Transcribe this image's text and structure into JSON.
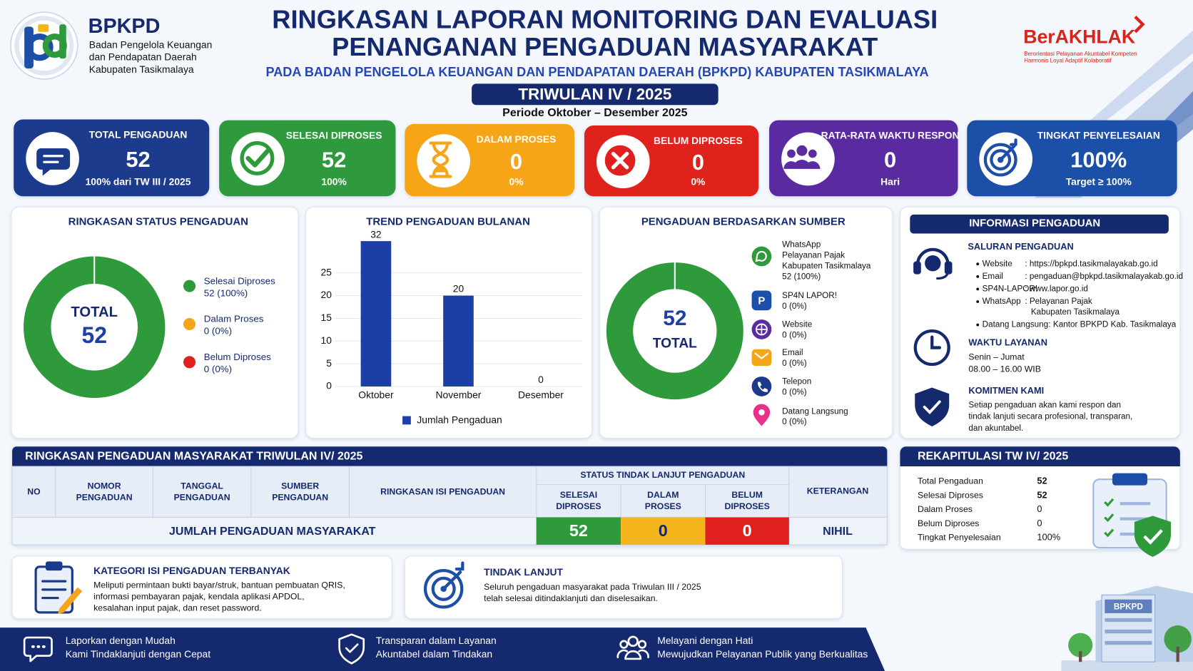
{
  "header": {
    "org_short": "BPKPD",
    "org_name": [
      "Badan Pengelola Keuangan",
      "dan Pendapatan Daerah",
      "Kabupaten Tasikmalaya"
    ],
    "title": [
      "RINGKASAN LAPORAN MONITORING DAN EVALUASI",
      "PENANGANAN PENGADUAN MASYARAKAT"
    ],
    "subtitle": "PADA BADAN PENGELOLA KEUANGAN DAN PENDAPATAN DAERAH (BPKPD) KABUPATEN TASIKMALAYA",
    "period_badge": "TRIWULAN IV / 2025",
    "period": "Periode Oktober – Desember 2025",
    "brand": "BerAKHLAK",
    "brand_tagline": [
      "Berorientasi Pelayanan Akuntabel Kompeten",
      "Harmonis Loyal Adaptif Kolaboratif"
    ]
  },
  "cards": [
    {
      "label": "TOTAL PENGADUAN",
      "value": "52",
      "note": "100% dari TW III / 2025",
      "color": "#1b3a8c"
    },
    {
      "label": "SELESAI DIPROSES",
      "value": "52",
      "note": "100%",
      "color": "#2f9a3c"
    },
    {
      "label": "DALAM PROSES",
      "value": "0",
      "note": "0%",
      "color": "#f5a519"
    },
    {
      "label": "BELUM DIPROSES",
      "value": "0",
      "note": "0%",
      "color": "#e0201f"
    },
    {
      "label": "RATA-RATA WAKTU RESPON",
      "value": "0",
      "note": "Hari",
      "color": "#5a2ca0"
    },
    {
      "label": "TINGKAT PENYELESAIAN",
      "value": "100%",
      "note": "Target ≥ 100%",
      "color": "#1d4fa8"
    }
  ],
  "status_chart": {
    "type": "donut",
    "title": "RINGKASAN STATUS PENGADUAN",
    "center_label": "TOTAL",
    "center_value": "52",
    "items": [
      {
        "name": "Selesai Diproses",
        "label": "52 (100%)",
        "value": 52,
        "color": "#2f9a3c"
      },
      {
        "name": "Dalam Proses",
        "label": "0 (0%)",
        "value": 0,
        "color": "#f5a519"
      },
      {
        "name": "Belum Diproses",
        "label": "0 (0%)",
        "value": 0,
        "color": "#e0201f"
      }
    ]
  },
  "trend_chart": {
    "type": "bar",
    "title": "TREND PENGADUAN BULANAN",
    "categories": [
      "Oktober",
      "November",
      "Desember"
    ],
    "values": [
      32,
      20,
      0
    ],
    "series_name": "Jumlah Pengaduan",
    "color": "#1b3fa6",
    "ylim": [
      0,
      34
    ],
    "yticks": [
      0,
      5,
      10,
      15,
      20,
      25
    ],
    "grid": true
  },
  "source_chart": {
    "type": "donut",
    "title": "PENGADUAN BERDASARKAN SUMBER",
    "center_value": "52",
    "center_label": "TOTAL",
    "items": [
      {
        "name": [
          "WhatsApp",
          "Pelayanan Pajak",
          "Kabupaten Tasikmalaya"
        ],
        "label": "52 (100%)",
        "value": 52,
        "color": "#2f9a3c"
      },
      {
        "name": [
          "SP4N LAPOR!"
        ],
        "label": "0 (0%)",
        "value": 0,
        "color": "#1d4fa8"
      },
      {
        "name": [
          "Website"
        ],
        "label": "0 (0%)",
        "value": 0,
        "color": "#5a2ca0"
      },
      {
        "name": [
          "Email"
        ],
        "label": "0 (0%)",
        "value": 0,
        "color": "#f5a519"
      },
      {
        "name": [
          "Telepon"
        ],
        "label": "0 (0%)",
        "value": 0,
        "color": "#1b3a8c"
      },
      {
        "name": [
          "Datang Langsung"
        ],
        "label": "0 (0%)",
        "value": 0,
        "color": "#e8318a"
      }
    ]
  },
  "info": {
    "title": "INFORMASI PENGADUAN",
    "channels_title": "SALURAN PENGADUAN",
    "channels": [
      {
        "label": "Website",
        "value": [
          ": https://bpkpd.tasikmalayakab.go.id"
        ]
      },
      {
        "label": "Email",
        "value": [
          ": pengaduan@bpkpd.tasikmalayakab.go.id"
        ]
      },
      {
        "label": "SP4N-LAPOR!",
        "value": [
          ": www.lapor.go.id"
        ]
      },
      {
        "label": "WhatsApp",
        "value": [
          ": Pelayanan Pajak",
          "Kabupaten Tasikmalaya"
        ]
      },
      {
        "label": "Datang Langsung",
        "value": [
          ": Kantor BPKPD Kab. Tasikmalaya"
        ]
      }
    ],
    "hours_title": "WAKTU LAYANAN",
    "hours": [
      "Senin – Jumat",
      "08.00 – 16.00 WIB"
    ],
    "commitment_title": "KOMITMEN KAMI",
    "commitment": [
      "Setiap pengaduan akan kami respon dan",
      "tindak lanjuti secara profesional, transparan,",
      "dan akuntabel."
    ]
  },
  "table": {
    "title": "RINGKASAN PENGADUAN MASYARAKAT TRIWULAN IV/ 2025",
    "headers": [
      [
        "NO"
      ],
      [
        "NOMOR",
        "PENGADUAN"
      ],
      [
        "TANGGAL",
        "PENGADUAN"
      ],
      [
        "SUMBER",
        "PENGADUAN"
      ],
      [
        "RINGKASAN ISI PENGADUAN"
      ]
    ],
    "status_header": "STATUS TINDAK LANJUT PENGADUAN",
    "status_cols": [
      [
        "SELESAI",
        "DIPROSES"
      ],
      [
        "DALAM",
        "PROSES"
      ],
      [
        "BELUM",
        "DIPROSES"
      ]
    ],
    "note_header": "KETERANGAN",
    "total_label": "JUMLAH PENGADUAN MASYARAKAT",
    "total_values": [
      "52",
      "0",
      "0"
    ],
    "total_colors": [
      "#2f9a3c",
      "#f5b51c",
      "#e0201f"
    ],
    "total_note": "NIHIL"
  },
  "recap": {
    "title": "REKAPITULASI TW IV/ 2025",
    "rows": [
      {
        "label": "Total Pengaduan",
        "value": "52"
      },
      {
        "label": "Selesai Diproses",
        "value": "52"
      },
      {
        "label": "Dalam Proses",
        "value": "0"
      },
      {
        "label": "Belum Diproses",
        "value": "0"
      },
      {
        "label": "Tingkat Penyelesaian",
        "value": "100%"
      }
    ]
  },
  "category": {
    "title": "KATEGORI ISI PENGADUAN TERBANYAK",
    "text": [
      "Meliputi permintaan bukti bayar/struk, bantuan pembuatan QRIS,",
      "informasi pembayaran pajak, kendala aplikasi APDOL,",
      "kesalahan input pajak, dan reset password."
    ]
  },
  "follow_up": {
    "title": "TINDAK LANJUT",
    "text": [
      "Seluruh pengaduan masyarakat pada Triwulan III / 2025",
      "telah selesai ditindaklanjuti dan diselesaikan."
    ]
  },
  "footer": [
    {
      "lines": [
        "Laporkan dengan Mudah",
        "Kami Tindaklanjuti dengan Cepat"
      ]
    },
    {
      "lines": [
        "Transparan dalam Layanan",
        "Akuntabel dalam Tindakan"
      ]
    },
    {
      "lines": [
        "Melayani dengan Hati",
        "Mewujudkan Pelayanan Publik yang Berkualitas"
      ]
    }
  ]
}
